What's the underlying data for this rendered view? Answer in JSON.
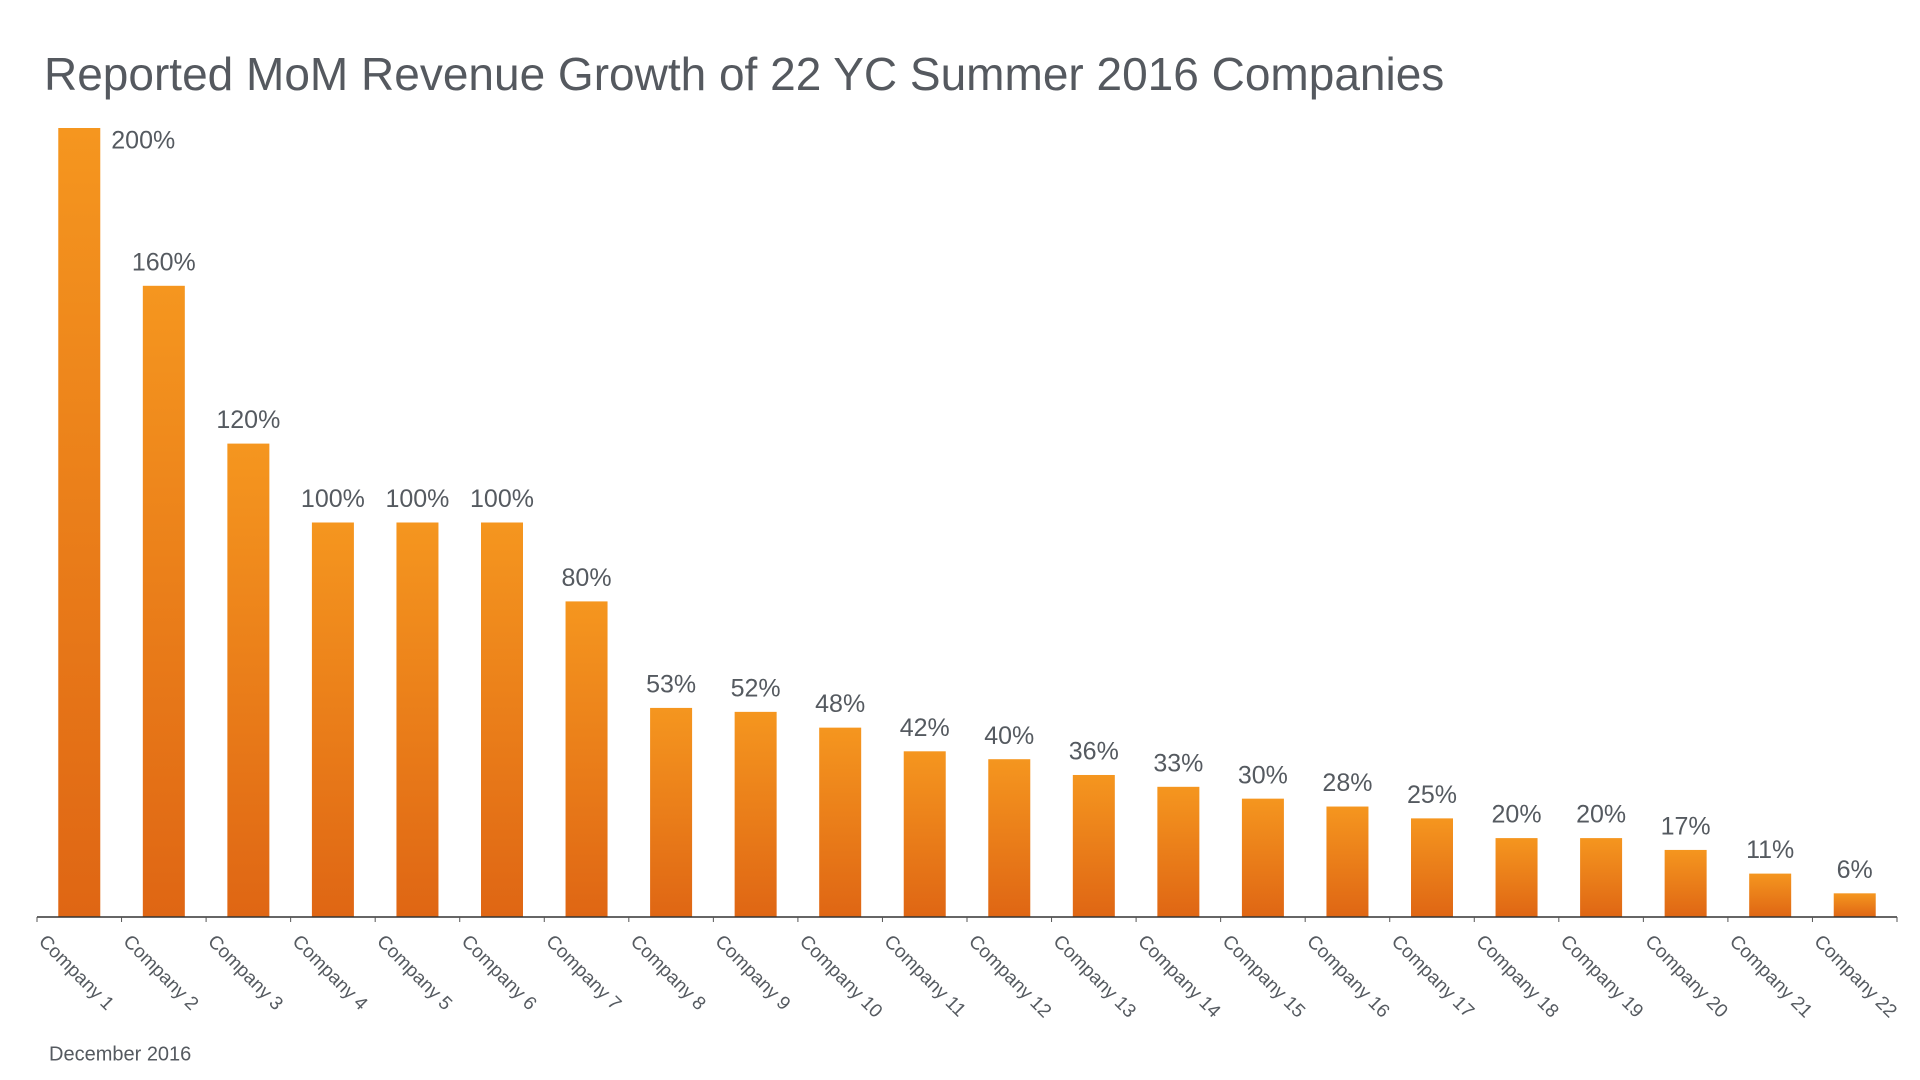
{
  "chart_data": {
    "type": "bar",
    "title": "Reported MoM Revenue Growth of 22 YC Summer 2016 Companies",
    "categories": [
      "Company 1",
      "Company 2",
      "Company 3",
      "Company 4",
      "Company 5",
      "Company 6",
      "Company 7",
      "Company 8",
      "Company 9",
      "Company 10",
      "Company 11",
      "Company 12",
      "Company 13",
      "Company 14",
      "Company 15",
      "Company 16",
      "Company 17",
      "Company 18",
      "Company 19",
      "Company 20",
      "Company 21",
      "Company 22"
    ],
    "values": [
      200,
      160,
      120,
      100,
      100,
      100,
      80,
      53,
      52,
      48,
      42,
      40,
      36,
      33,
      30,
      28,
      25,
      20,
      20,
      17,
      11,
      6
    ],
    "value_labels": [
      "200%",
      "160%",
      "120%",
      "100%",
      "100%",
      "100%",
      "80%",
      "53%",
      "52%",
      "48%",
      "42%",
      "40%",
      "36%",
      "33%",
      "30%",
      "28%",
      "25%",
      "20%",
      "20%",
      "17%",
      "11%",
      "6%"
    ],
    "gradient": [
      "#f5961f",
      "#df6614"
    ],
    "ylim": [
      0,
      200
    ],
    "footnote": "December 2016"
  }
}
